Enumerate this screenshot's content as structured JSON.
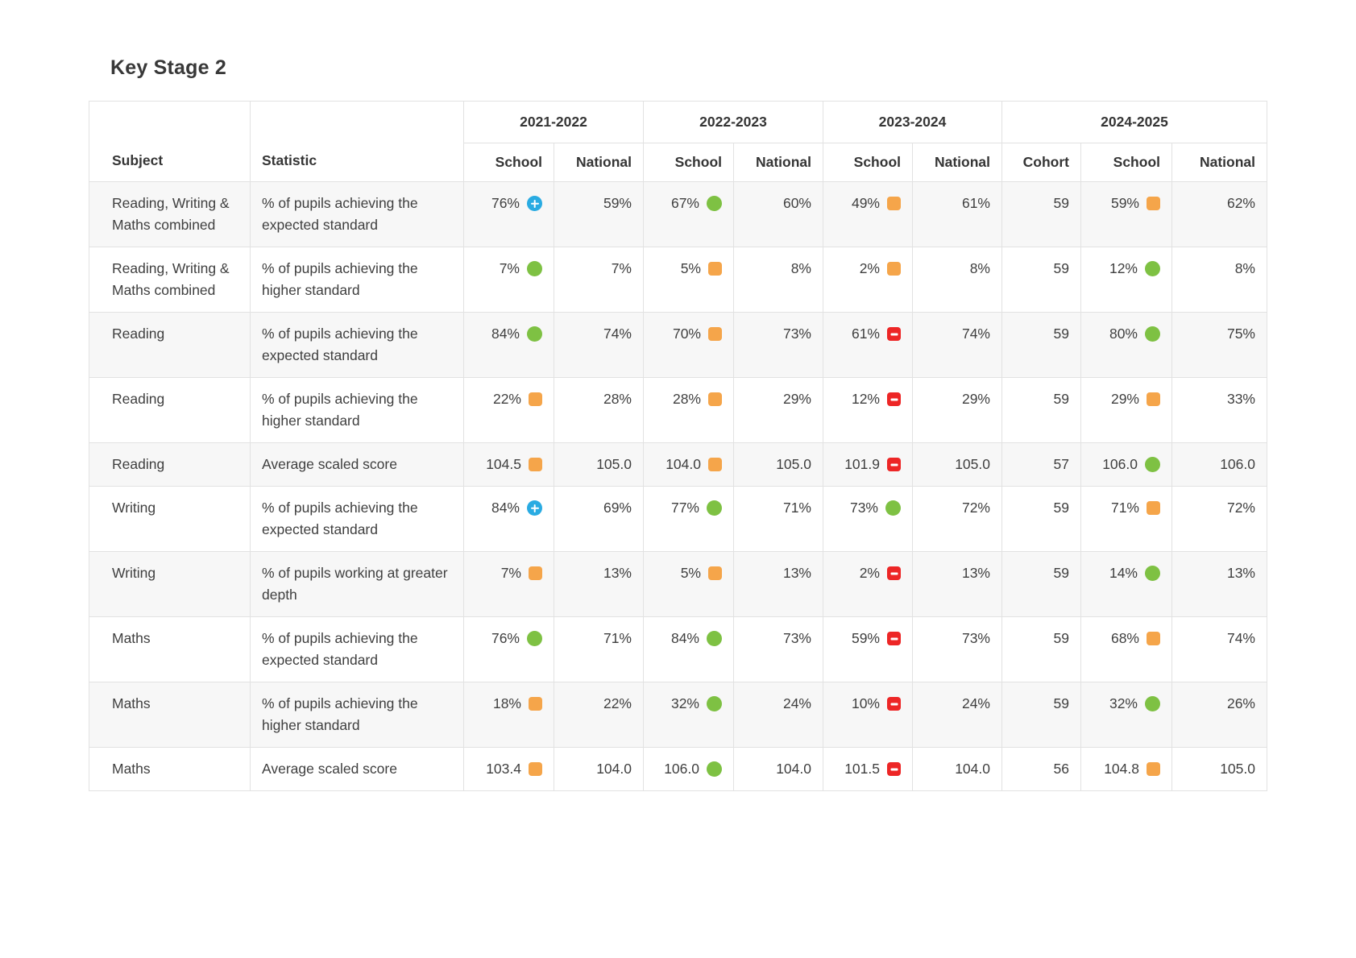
{
  "page": {
    "title": "Key Stage 2"
  },
  "table": {
    "corner_headers": {
      "subject": "Subject",
      "statistic": "Statistic"
    },
    "year_groups": [
      {
        "label": "2021-2022",
        "columns": [
          "School",
          "National"
        ]
      },
      {
        "label": "2022-2023",
        "columns": [
          "School",
          "National"
        ]
      },
      {
        "label": "2023-2024",
        "columns": [
          "School",
          "National"
        ]
      },
      {
        "label": "2024-2025",
        "columns": [
          "Cohort",
          "School",
          "National"
        ]
      }
    ],
    "icon_colors": {
      "blue-plus": "#29abe2",
      "green-circle": "#7ec143",
      "amber-square": "#f5a54a",
      "red-minus": "#ed2626"
    },
    "rows": [
      {
        "subject": "Reading, Writing & Maths combined",
        "statistic": "% of pupils achieving the expected standard",
        "cells": [
          {
            "value": "76%",
            "icon": "blue-plus"
          },
          {
            "value": "59%",
            "icon": null
          },
          {
            "value": "67%",
            "icon": "green-circle"
          },
          {
            "value": "60%",
            "icon": null
          },
          {
            "value": "49%",
            "icon": "amber-square"
          },
          {
            "value": "61%",
            "icon": null
          },
          {
            "value": "59",
            "icon": null
          },
          {
            "value": "59%",
            "icon": "amber-square"
          },
          {
            "value": "62%",
            "icon": null
          }
        ]
      },
      {
        "subject": "Reading, Writing & Maths combined",
        "statistic": "% of pupils achieving the higher standard",
        "cells": [
          {
            "value": "7%",
            "icon": "green-circle"
          },
          {
            "value": "7%",
            "icon": null
          },
          {
            "value": "5%",
            "icon": "amber-square"
          },
          {
            "value": "8%",
            "icon": null
          },
          {
            "value": "2%",
            "icon": "amber-square"
          },
          {
            "value": "8%",
            "icon": null
          },
          {
            "value": "59",
            "icon": null
          },
          {
            "value": "12%",
            "icon": "green-circle"
          },
          {
            "value": "8%",
            "icon": null
          }
        ]
      },
      {
        "subject": "Reading",
        "statistic": "% of pupils achieving the expected standard",
        "cells": [
          {
            "value": "84%",
            "icon": "green-circle"
          },
          {
            "value": "74%",
            "icon": null
          },
          {
            "value": "70%",
            "icon": "amber-square"
          },
          {
            "value": "73%",
            "icon": null
          },
          {
            "value": "61%",
            "icon": "red-minus"
          },
          {
            "value": "74%",
            "icon": null
          },
          {
            "value": "59",
            "icon": null
          },
          {
            "value": "80%",
            "icon": "green-circle"
          },
          {
            "value": "75%",
            "icon": null
          }
        ]
      },
      {
        "subject": "Reading",
        "statistic": "% of pupils achieving the higher standard",
        "cells": [
          {
            "value": "22%",
            "icon": "amber-square"
          },
          {
            "value": "28%",
            "icon": null
          },
          {
            "value": "28%",
            "icon": "amber-square"
          },
          {
            "value": "29%",
            "icon": null
          },
          {
            "value": "12%",
            "icon": "red-minus"
          },
          {
            "value": "29%",
            "icon": null
          },
          {
            "value": "59",
            "icon": null
          },
          {
            "value": "29%",
            "icon": "amber-square"
          },
          {
            "value": "33%",
            "icon": null
          }
        ]
      },
      {
        "subject": "Reading",
        "statistic": "Average scaled score",
        "cells": [
          {
            "value": "104.5",
            "icon": "amber-square"
          },
          {
            "value": "105.0",
            "icon": null
          },
          {
            "value": "104.0",
            "icon": "amber-square"
          },
          {
            "value": "105.0",
            "icon": null
          },
          {
            "value": "101.9",
            "icon": "red-minus"
          },
          {
            "value": "105.0",
            "icon": null
          },
          {
            "value": "57",
            "icon": null
          },
          {
            "value": "106.0",
            "icon": "green-circle"
          },
          {
            "value": "106.0",
            "icon": null
          }
        ]
      },
      {
        "subject": "Writing",
        "statistic": "% of pupils achieving the expected standard",
        "cells": [
          {
            "value": "84%",
            "icon": "blue-plus"
          },
          {
            "value": "69%",
            "icon": null
          },
          {
            "value": "77%",
            "icon": "green-circle"
          },
          {
            "value": "71%",
            "icon": null
          },
          {
            "value": "73%",
            "icon": "green-circle"
          },
          {
            "value": "72%",
            "icon": null
          },
          {
            "value": "59",
            "icon": null
          },
          {
            "value": "71%",
            "icon": "amber-square"
          },
          {
            "value": "72%",
            "icon": null
          }
        ]
      },
      {
        "subject": "Writing",
        "statistic": "% of pupils working at greater depth",
        "cells": [
          {
            "value": "7%",
            "icon": "amber-square"
          },
          {
            "value": "13%",
            "icon": null
          },
          {
            "value": "5%",
            "icon": "amber-square"
          },
          {
            "value": "13%",
            "icon": null
          },
          {
            "value": "2%",
            "icon": "red-minus"
          },
          {
            "value": "13%",
            "icon": null
          },
          {
            "value": "59",
            "icon": null
          },
          {
            "value": "14%",
            "icon": "green-circle"
          },
          {
            "value": "13%",
            "icon": null
          }
        ]
      },
      {
        "subject": "Maths",
        "statistic": "% of pupils achieving the expected standard",
        "cells": [
          {
            "value": "76%",
            "icon": "green-circle"
          },
          {
            "value": "71%",
            "icon": null
          },
          {
            "value": "84%",
            "icon": "green-circle"
          },
          {
            "value": "73%",
            "icon": null
          },
          {
            "value": "59%",
            "icon": "red-minus"
          },
          {
            "value": "73%",
            "icon": null
          },
          {
            "value": "59",
            "icon": null
          },
          {
            "value": "68%",
            "icon": "amber-square"
          },
          {
            "value": "74%",
            "icon": null
          }
        ]
      },
      {
        "subject": "Maths",
        "statistic": "% of pupils achieving the higher standard",
        "cells": [
          {
            "value": "18%",
            "icon": "amber-square"
          },
          {
            "value": "22%",
            "icon": null
          },
          {
            "value": "32%",
            "icon": "green-circle"
          },
          {
            "value": "24%",
            "icon": null
          },
          {
            "value": "10%",
            "icon": "red-minus"
          },
          {
            "value": "24%",
            "icon": null
          },
          {
            "value": "59",
            "icon": null
          },
          {
            "value": "32%",
            "icon": "green-circle"
          },
          {
            "value": "26%",
            "icon": null
          }
        ]
      },
      {
        "subject": "Maths",
        "statistic": "Average scaled score",
        "cells": [
          {
            "value": "103.4",
            "icon": "amber-square"
          },
          {
            "value": "104.0",
            "icon": null
          },
          {
            "value": "106.0",
            "icon": "green-circle"
          },
          {
            "value": "104.0",
            "icon": null
          },
          {
            "value": "101.5",
            "icon": "red-minus"
          },
          {
            "value": "104.0",
            "icon": null
          },
          {
            "value": "56",
            "icon": null
          },
          {
            "value": "104.8",
            "icon": "amber-square"
          },
          {
            "value": "105.0",
            "icon": null
          }
        ]
      }
    ]
  }
}
